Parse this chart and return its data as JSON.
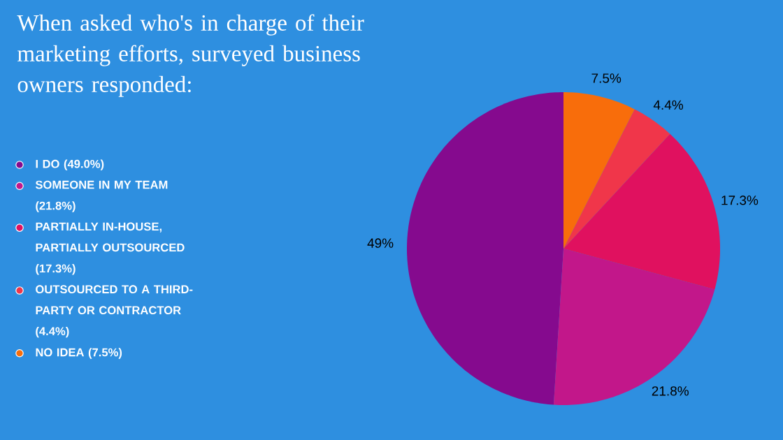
{
  "chart_data": {
    "type": "pie",
    "title": "When asked who's in charge of their marketing efforts, surveyed business owners responded:",
    "categories": [
      "I DO (49.0%)",
      "SOMEONE IN MY TEAM (21.8%)",
      "PARTIALLY IN-HOUSE, PARTIALLY OUTSOURCED (17.3%)",
      "OUTSOURCED TO A THIRD-PARTY OR CONTRACTOR (4.4%)",
      "NO IDEA (7.5%)"
    ],
    "values": [
      49,
      21.8,
      17.3,
      4.4,
      7.5
    ],
    "colors": [
      "#850a8e",
      "#c2178a",
      "#e0115f",
      "#f0364a",
      "#f86d0b"
    ],
    "value_labels": [
      "49%",
      "21.8%",
      "17.3%",
      "4.4%",
      "7.5%"
    ],
    "legend": "left"
  }
}
